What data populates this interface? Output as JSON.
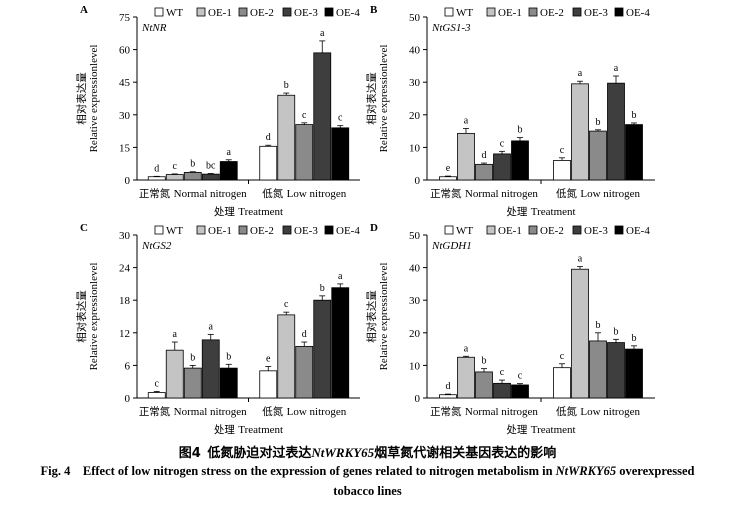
{
  "caption": {
    "zh_prefix": "图4",
    "zh_text": "低氮胁迫对过表达",
    "zh_gene": "NtWRKY65",
    "zh_suffix": "烟草氮代谢相关基因表达的影响",
    "en_prefix": "Fig. 4",
    "en_text": "Effect of low nitrogen stress on the expression of genes related to nitrogen metabolism in",
    "en_gene": "NtWRKY65",
    "en_suffix": "overexpressed",
    "en_line2": "tobacco lines"
  },
  "chart_data": [
    {
      "type": "bar",
      "panel": "A",
      "gene": "NtNR",
      "categories": [
        "正常氮 Normal nitrogen",
        "低氮 Low nitrogen"
      ],
      "xlabel": "处理 Treatment",
      "ylabel_zh": "相对表达量",
      "ylabel_en": "Relative expressionlevel",
      "ylim": [
        0,
        75
      ],
      "yticks": [
        0,
        15,
        30,
        45,
        60,
        75
      ],
      "grid": false,
      "legend_position": "top",
      "series": [
        {
          "name": "WT",
          "color": "#ffffff",
          "values": [
            1.5,
            15.5
          ],
          "errors": [
            0.2,
            0.5
          ],
          "letters": [
            "d",
            "d"
          ]
        },
        {
          "name": "OE-1",
          "color": "#c4c4c4",
          "values": [
            2.5,
            39.0
          ],
          "errors": [
            0.3,
            1.0
          ],
          "letters": [
            "c",
            "b"
          ]
        },
        {
          "name": "OE-2",
          "color": "#8a8a8a",
          "values": [
            3.5,
            25.5
          ],
          "errors": [
            0.3,
            0.8
          ],
          "letters": [
            "b",
            "c"
          ]
        },
        {
          "name": "OE-3",
          "color": "#3e3e3e",
          "values": [
            2.7,
            58.5
          ],
          "errors": [
            0.3,
            5.5
          ],
          "letters": [
            "bc",
            "a"
          ]
        },
        {
          "name": "OE-4",
          "color": "#000000",
          "values": [
            8.5,
            24.0
          ],
          "errors": [
            0.8,
            1.0
          ],
          "letters": [
            "a",
            "c"
          ]
        }
      ]
    },
    {
      "type": "bar",
      "panel": "B",
      "gene": "NtGS1-3",
      "categories": [
        "正常氮 Normal nitrogen",
        "低氮 Low nitrogen"
      ],
      "xlabel": "处理 Treatment",
      "ylabel_zh": "相对表达量",
      "ylabel_en": "Relative expressionlevel",
      "ylim": [
        0,
        50
      ],
      "yticks": [
        0,
        10,
        20,
        30,
        40,
        50
      ],
      "grid": false,
      "legend_position": "top",
      "series": [
        {
          "name": "WT",
          "color": "#ffffff",
          "values": [
            1.0,
            6.0
          ],
          "errors": [
            0.2,
            0.8
          ],
          "letters": [
            "e",
            "c"
          ]
        },
        {
          "name": "OE-1",
          "color": "#c4c4c4",
          "values": [
            14.3,
            29.5
          ],
          "errors": [
            1.5,
            0.8
          ],
          "letters": [
            "a",
            "a"
          ]
        },
        {
          "name": "OE-2",
          "color": "#8a8a8a",
          "values": [
            4.8,
            15.0
          ],
          "errors": [
            0.4,
            0.4
          ],
          "letters": [
            "d",
            "b"
          ]
        },
        {
          "name": "OE-3",
          "color": "#3e3e3e",
          "values": [
            8.0,
            29.7
          ],
          "errors": [
            0.8,
            2.2
          ],
          "letters": [
            "c",
            "a"
          ]
        },
        {
          "name": "OE-4",
          "color": "#000000",
          "values": [
            12.0,
            17.0
          ],
          "errors": [
            1.0,
            0.5
          ],
          "letters": [
            "b",
            "b"
          ]
        }
      ]
    },
    {
      "type": "bar",
      "panel": "C",
      "gene": "NtGS2",
      "categories": [
        "正常氮 Normal nitrogen",
        "低氮 Low nitrogen"
      ],
      "xlabel": "处理 Treatment",
      "ylabel_zh": "相对表达量",
      "ylabel_en": "Relative expressionlevel",
      "ylim": [
        0,
        30
      ],
      "yticks": [
        0,
        6,
        12,
        18,
        24,
        30
      ],
      "grid": false,
      "legend_position": "top",
      "series": [
        {
          "name": "WT",
          "color": "#ffffff",
          "values": [
            1.0,
            5.0
          ],
          "errors": [
            0.2,
            0.8
          ],
          "letters": [
            "c",
            "e"
          ]
        },
        {
          "name": "OE-1",
          "color": "#c4c4c4",
          "values": [
            8.8,
            15.3
          ],
          "errors": [
            1.5,
            0.5
          ],
          "letters": [
            "a",
            "c"
          ]
        },
        {
          "name": "OE-2",
          "color": "#8a8a8a",
          "values": [
            5.5,
            9.5
          ],
          "errors": [
            0.5,
            0.8
          ],
          "letters": [
            "b",
            "d"
          ]
        },
        {
          "name": "OE-3",
          "color": "#3e3e3e",
          "values": [
            10.7,
            18.0
          ],
          "errors": [
            1.0,
            0.8
          ],
          "letters": [
            "a",
            "b"
          ]
        },
        {
          "name": "OE-4",
          "color": "#000000",
          "values": [
            5.5,
            20.3
          ],
          "errors": [
            0.7,
            0.7
          ],
          "letters": [
            "b",
            "a"
          ]
        }
      ]
    },
    {
      "type": "bar",
      "panel": "D",
      "gene": "NtGDH1",
      "categories": [
        "正常氮 Normal nitrogen",
        "低氮 Low nitrogen"
      ],
      "xlabel": "处理 Treatment",
      "ylabel_zh": "相对表达量",
      "ylabel_en": "Relative expressionlevel",
      "ylim": [
        0,
        50
      ],
      "yticks": [
        0,
        10,
        20,
        30,
        40,
        50
      ],
      "grid": false,
      "legend_position": "top",
      "series": [
        {
          "name": "WT",
          "color": "#ffffff",
          "values": [
            1.0,
            9.3
          ],
          "errors": [
            0.2,
            1.2
          ],
          "letters": [
            "d",
            "c"
          ]
        },
        {
          "name": "OE-1",
          "color": "#c4c4c4",
          "values": [
            12.5,
            39.5
          ],
          "errors": [
            0.3,
            0.8
          ],
          "letters": [
            "a",
            "a"
          ]
        },
        {
          "name": "OE-2",
          "color": "#8a8a8a",
          "values": [
            8.0,
            17.5
          ],
          "errors": [
            1.0,
            2.5
          ],
          "letters": [
            "b",
            "b"
          ]
        },
        {
          "name": "OE-3",
          "color": "#3e3e3e",
          "values": [
            4.5,
            17.0
          ],
          "errors": [
            1.0,
            1.0
          ],
          "letters": [
            "c",
            "b"
          ]
        },
        {
          "name": "OE-4",
          "color": "#000000",
          "values": [
            4.0,
            15.0
          ],
          "errors": [
            0.4,
            1.0
          ],
          "letters": [
            "c",
            "b"
          ]
        }
      ]
    }
  ]
}
